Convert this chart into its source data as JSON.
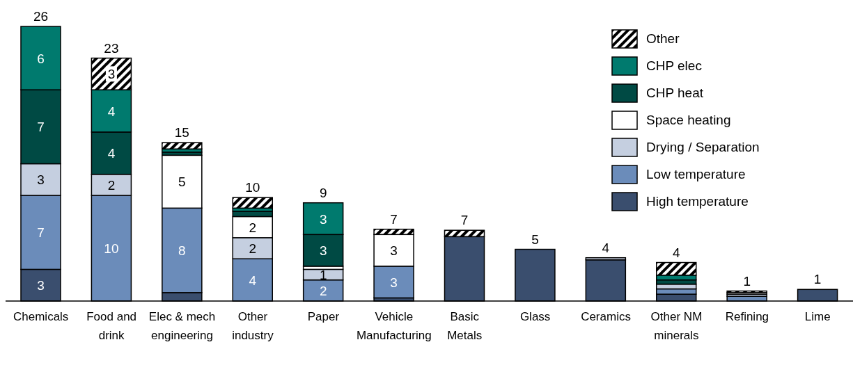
{
  "chart_data": {
    "type": "bar",
    "stacked": true,
    "legend": "top right",
    "categories": [
      "Chemicals",
      "Food and drink",
      "Elec & mech engineering",
      "Other industry",
      "Paper",
      "Vehicle Manufacturing",
      "Basic Metals",
      "Glass",
      "Ceramics",
      "Other NM minerals",
      "Refining",
      "Lime"
    ],
    "series": [
      {
        "name": "High temperature",
        "color": "#3a4e6e",
        "values": [
          3,
          0,
          0.8,
          0,
          0,
          0.3,
          6.1,
          4.9,
          3.9,
          0.65,
          0,
          1.1
        ],
        "value_labels": [
          "3",
          null,
          null,
          null,
          null,
          null,
          null,
          null,
          null,
          null,
          null,
          null
        ]
      },
      {
        "name": "Low temperature",
        "color": "#6b8cba",
        "values": [
          7,
          10,
          8,
          4,
          2,
          3,
          0,
          0,
          0,
          0.5,
          0.45,
          0
        ],
        "value_labels": [
          "7",
          "10",
          "8",
          "4",
          "2",
          "3",
          null,
          null,
          null,
          null,
          null,
          null
        ]
      },
      {
        "name": "Drying / Separation",
        "color": "#c5cfe0",
        "values": [
          3,
          2,
          0,
          2,
          1,
          0,
          0,
          0,
          0.2,
          0.45,
          0.2,
          0
        ],
        "value_labels": [
          "3",
          "2",
          null,
          "2",
          "1",
          null,
          null,
          null,
          null,
          null,
          null,
          null
        ]
      },
      {
        "name": "Space heating",
        "color": "#ffffff",
        "values": [
          0,
          0,
          5,
          2,
          0.3,
          3,
          0,
          0,
          0,
          0,
          0.15,
          0
        ],
        "value_labels": [
          null,
          null,
          "5",
          "2",
          null,
          "3",
          null,
          null,
          null,
          null,
          null,
          null
        ]
      },
      {
        "name": "CHP heat",
        "color": "#004a44",
        "values": [
          7,
          4,
          0.3,
          0.5,
          3,
          0,
          0,
          0,
          0,
          0.4,
          0,
          0
        ],
        "value_labels": [
          "7",
          "4",
          null,
          null,
          "3",
          null,
          null,
          null,
          null,
          null,
          null,
          null
        ]
      },
      {
        "name": "CHP elec",
        "color": "#007a6e",
        "values": [
          6,
          4,
          0.3,
          0.3,
          3,
          0,
          0,
          0,
          0,
          0.45,
          0,
          0
        ],
        "value_labels": [
          "6",
          "4",
          null,
          null,
          "3",
          null,
          null,
          null,
          null,
          null,
          null,
          null
        ]
      },
      {
        "name": "Other",
        "color": "#000000",
        "values": [
          0,
          3,
          0.6,
          1,
          0,
          0.5,
          0.6,
          0,
          0,
          1.2,
          0.15,
          0
        ],
        "value_labels": [
          null,
          "3",
          null,
          null,
          null,
          null,
          null,
          null,
          null,
          null,
          null,
          null
        ]
      }
    ],
    "totals": [
      "26",
      "23",
      "15",
      "10",
      "9",
      "7",
      "7",
      "5",
      "4",
      "4",
      "1",
      "1"
    ]
  }
}
